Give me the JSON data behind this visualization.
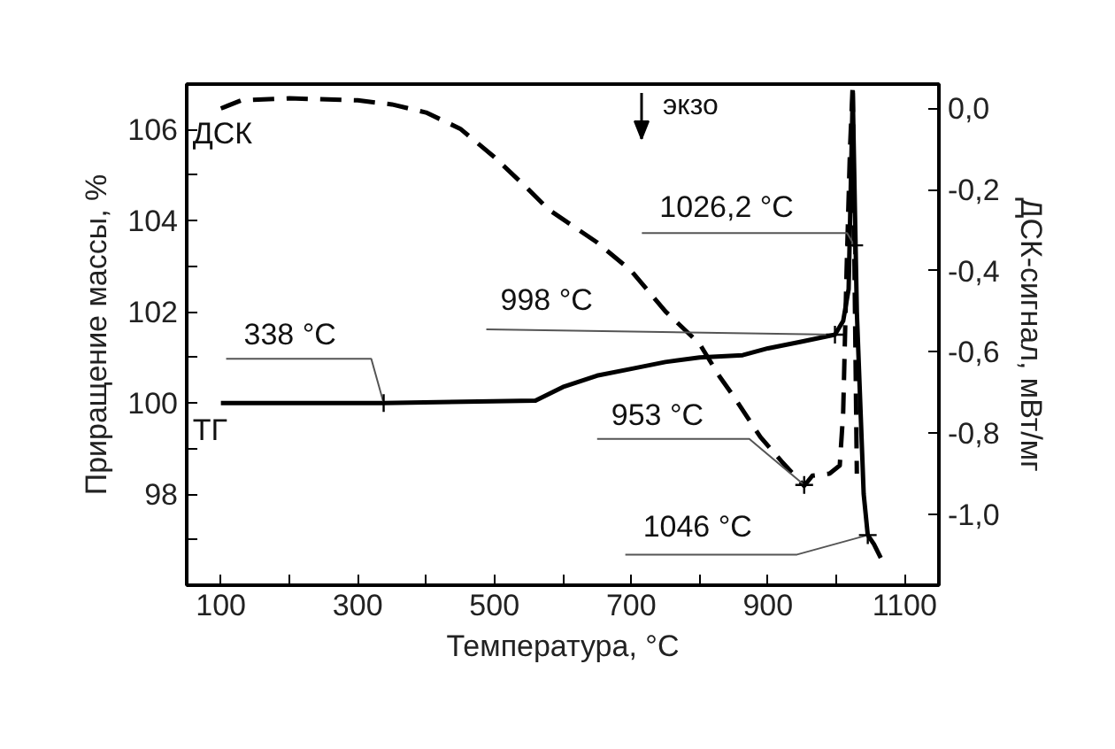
{
  "chart_data": {
    "type": "line",
    "xlabel": "Температура, °C",
    "ylabel": "Приращение массы, %",
    "y2label": "ДСК-сигнал, мВт/мг",
    "xlim": [
      50,
      1150
    ],
    "ylim": [
      96,
      107
    ],
    "y2lim": [
      -1.175,
      0.06
    ],
    "xticks": [
      100,
      {
        "value": 200,
        "label": null
      },
      300,
      {
        "value": 400,
        "label": null
      },
      500,
      {
        "value": 600,
        "label": null
      },
      700,
      {
        "value": 800,
        "label": null
      },
      900,
      {
        "value": 1000,
        "label": null
      },
      1100
    ],
    "yticks": [
      {
        "value": 97,
        "label": null
      },
      98,
      {
        "value": 99,
        "label": null
      },
      100,
      {
        "value": 101,
        "label": null
      },
      102,
      {
        "value": 103,
        "label": null
      },
      104,
      {
        "value": 105,
        "label": null
      },
      106
    ],
    "y2ticks": [
      {
        "value": 0,
        "label": "0,0"
      },
      {
        "value": -0.2,
        "label": "-0,2"
      },
      {
        "value": -0.4,
        "label": "-0,4"
      },
      {
        "value": -0.6,
        "label": "-0,6"
      },
      {
        "value": -0.8,
        "label": "-0,8"
      },
      {
        "value": -1.0,
        "label": "-1,0"
      }
    ],
    "grid": false,
    "legend": "left",
    "marker": "none",
    "series": [
      {
        "name": "ДСК",
        "color": "#000000",
        "axis": "y2",
        "line_style": "dashed",
        "x": [
          100,
          130,
          200,
          300,
          350,
          400,
          450,
          500,
          550,
          580,
          650,
          700,
          750,
          800,
          829,
          850,
          889,
          920,
          953,
          965,
          990,
          1005,
          1010,
          1015,
          1020,
          1024,
          1026.2,
          1030
        ],
        "values": [
          0.0,
          0.02,
          0.025,
          0.02,
          0.01,
          -0.01,
          -0.05,
          -0.12,
          -0.2,
          -0.25,
          -0.33,
          -0.4,
          -0.5,
          -0.58,
          -0.66,
          -0.71,
          -0.81,
          -0.87,
          -0.93,
          -0.905,
          -0.9,
          -0.88,
          -0.75,
          -0.4,
          -0.1,
          0.06,
          -0.34,
          -0.9
        ]
      },
      {
        "name": "ТГ",
        "color": "#000000",
        "line_style": "solid",
        "x": [
          100,
          338,
          560,
          600,
          650,
          700,
          750,
          800,
          863,
          900,
          950,
          998,
          1010,
          1018,
          1024,
          1030,
          1040,
          1046,
          1055,
          1065
        ],
        "values": [
          100,
          100,
          100.05,
          100.35,
          100.6,
          100.75,
          100.9,
          101.0,
          101.05,
          101.2,
          101.35,
          101.5,
          101.8,
          102.5,
          106.8,
          102,
          98,
          97.1,
          96.9,
          96.6
        ]
      }
    ],
    "annotations": [
      {
        "text": "338 °C",
        "x": 338,
        "y": 100
      },
      {
        "text": "998 °C",
        "x": 998,
        "y": 101.5
      },
      {
        "text": "1026,2 °C",
        "x": 1026.2,
        "y": 103.46
      },
      {
        "text": "953 °C",
        "x": 953,
        "y": 98.2
      },
      {
        "text": "1046 °C",
        "x": 1046,
        "y": 97.1
      },
      "экзо"
    ]
  }
}
